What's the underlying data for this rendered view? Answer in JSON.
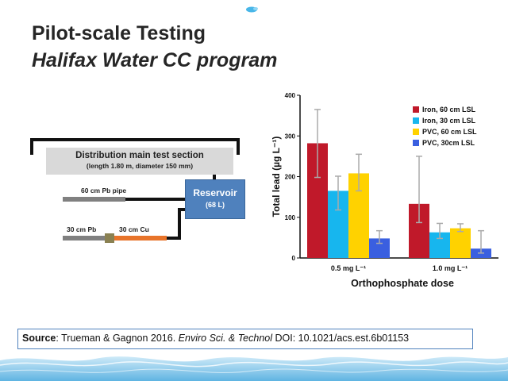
{
  "title": {
    "line1": "Pilot-scale Testing",
    "line2": "Halifax Water CC program"
  },
  "diagram": {
    "distribution_title": "Distribution main test section",
    "distribution_sub": "(length 1.80 m, diameter 150 mm)",
    "reservoir_title": "Reservoir",
    "reservoir_sub": "(68 L)",
    "pipe_pb60": "60 cm Pb pipe",
    "pipe_pb30": "30 cm Pb",
    "pipe_cu30": "30 cm Cu"
  },
  "source": {
    "label": "Source",
    "authors": ": Trueman & Gagnon 2016. ",
    "journal": "Enviro Sci. & Technol",
    "doi": " DOI: 10.1021/acs.est.6b01153"
  },
  "colors": {
    "iron60": "#c0192a",
    "iron30": "#17b6ee",
    "pvc60": "#ffd200",
    "pvc30": "#3a5fe0",
    "error": "#aaaaaa"
  },
  "chart_data": {
    "type": "bar",
    "categories": [
      "0.5 mg L⁻¹",
      "1.0 mg L⁻¹"
    ],
    "series": [
      {
        "name": "Iron, 60 cm LSL",
        "values": [
          282,
          133
        ],
        "err_low": [
          198,
          87
        ],
        "err_high": [
          365,
          250
        ]
      },
      {
        "name": "Iron, 30 cm LSL",
        "values": [
          165,
          63
        ],
        "err_low": [
          118,
          48
        ],
        "err_high": [
          201,
          85
        ]
      },
      {
        "name": "PVC, 60 cm LSL",
        "values": [
          208,
          73
        ],
        "err_low": [
          165,
          65
        ],
        "err_high": [
          255,
          84
        ]
      },
      {
        "name": "PVC, 30cm LSL",
        "values": [
          48,
          23
        ],
        "err_low": [
          36,
          12
        ],
        "err_high": [
          67,
          67
        ]
      }
    ],
    "xlabel": "Orthophosphate dose",
    "ylabel": "Total lead (µg L⁻¹)",
    "ylim": [
      0,
      400
    ],
    "yticks": [
      "0",
      "100",
      "200",
      "300",
      "400"
    ],
    "legend": "top-right",
    "grid": false
  }
}
